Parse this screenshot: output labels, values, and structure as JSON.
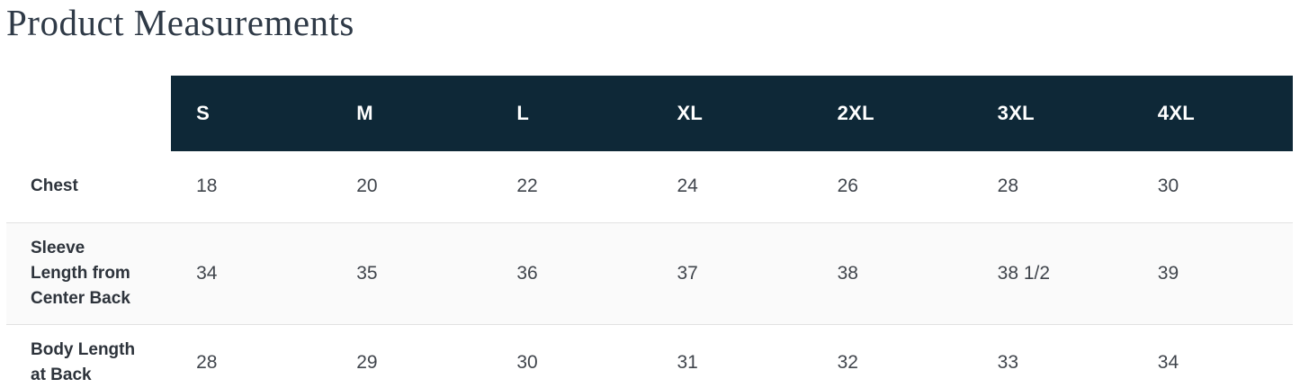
{
  "page": {
    "title": "Product Measurements"
  },
  "colors": {
    "header_bg": "#0e2837",
    "header_text": "#ffffff",
    "title_text": "#2f3a47",
    "row_alt_bg": "#fafafa",
    "row_border": "#e2e2e2",
    "value_text": "#40454c"
  },
  "table": {
    "columns": [
      "S",
      "M",
      "L",
      "XL",
      "2XL",
      "3XL",
      "4XL"
    ],
    "rows": [
      {
        "label": "Chest",
        "values": [
          "18",
          "20",
          "22",
          "24",
          "26",
          "28",
          "30"
        ]
      },
      {
        "label": "Sleeve Length from Center Back",
        "values": [
          "34",
          "35",
          "36",
          "37",
          "38",
          "38 1/2",
          "39"
        ]
      },
      {
        "label": "Body Length at Back",
        "values": [
          "28",
          "29",
          "30",
          "31",
          "32",
          "33",
          "34"
        ]
      }
    ]
  }
}
